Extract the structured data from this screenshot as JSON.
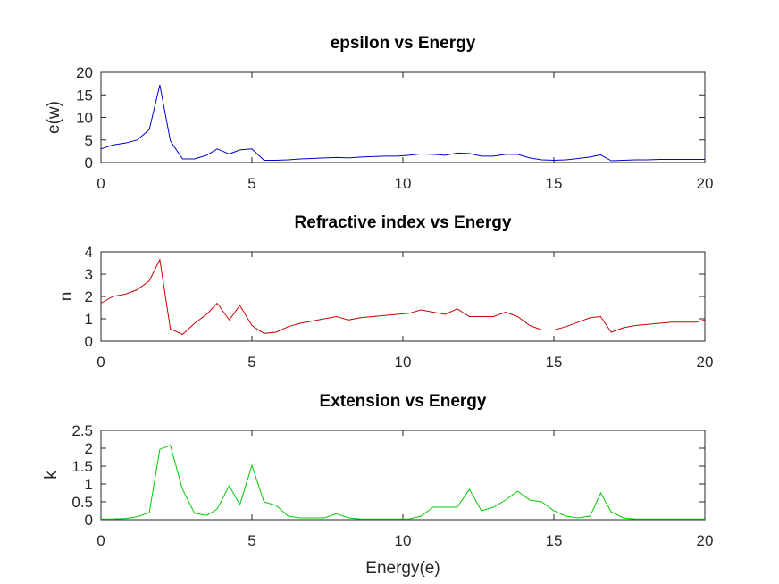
{
  "chart_data": [
    {
      "type": "line",
      "title": "epsilon vs Energy",
      "xlabel": "",
      "ylabel": "e(w)",
      "xlim": [
        0,
        20
      ],
      "ylim": [
        0,
        20
      ],
      "xticks": [
        "0",
        "5",
        "10",
        "15",
        "20"
      ],
      "yticks": [
        "0",
        "5",
        "10",
        "15",
        "20"
      ],
      "color": "#0000cc",
      "x": [
        0,
        0.4,
        0.8,
        1.2,
        1.6,
        1.95,
        2.3,
        2.7,
        3.1,
        3.5,
        3.85,
        4.25,
        4.6,
        5.0,
        5.4,
        5.8,
        6.2,
        6.6,
        7.0,
        7.4,
        7.8,
        8.2,
        8.6,
        9.0,
        9.4,
        9.8,
        10.2,
        10.6,
        11.0,
        11.4,
        11.8,
        12.2,
        12.6,
        13.0,
        13.4,
        13.8,
        14.2,
        14.6,
        15.0,
        15.4,
        15.8,
        16.2,
        16.55,
        16.9,
        17.3,
        17.7,
        18.1,
        18.5,
        18.9,
        19.3,
        19.7,
        20
      ],
      "y": [
        3.0,
        3.9,
        4.3,
        5.0,
        7.3,
        17.2,
        4.8,
        0.8,
        0.8,
        1.6,
        3.0,
        1.9,
        2.8,
        3.0,
        0.5,
        0.5,
        0.6,
        0.8,
        0.9,
        1.0,
        1.1,
        1.0,
        1.2,
        1.3,
        1.4,
        1.4,
        1.6,
        1.9,
        1.8,
        1.6,
        2.1,
        2.0,
        1.4,
        1.4,
        1.8,
        1.8,
        1.0,
        0.6,
        0.5,
        0.6,
        0.9,
        1.2,
        1.7,
        0.4,
        0.5,
        0.6,
        0.6,
        0.7,
        0.7,
        0.7,
        0.7,
        0.7
      ]
    },
    {
      "type": "line",
      "title": "Refractive index vs Energy",
      "xlabel": "",
      "ylabel": "n",
      "xlim": [
        0,
        20
      ],
      "ylim": [
        0,
        4
      ],
      "xticks": [
        "0",
        "5",
        "10",
        "15",
        "20"
      ],
      "yticks": [
        "0",
        "1",
        "2",
        "3",
        "4"
      ],
      "color": "#cc0000",
      "x": [
        0,
        0.4,
        0.8,
        1.2,
        1.6,
        1.95,
        2.3,
        2.7,
        3.1,
        3.5,
        3.85,
        4.25,
        4.6,
        5.0,
        5.4,
        5.8,
        6.2,
        6.6,
        7.0,
        7.4,
        7.8,
        8.2,
        8.6,
        9.0,
        9.4,
        9.8,
        10.2,
        10.6,
        11.0,
        11.4,
        11.8,
        12.2,
        12.6,
        13.0,
        13.4,
        13.8,
        14.2,
        14.6,
        15.0,
        15.4,
        15.8,
        16.2,
        16.55,
        16.9,
        17.3,
        17.7,
        18.1,
        18.5,
        18.9,
        19.3,
        19.7,
        20
      ],
      "y": [
        1.7,
        2.0,
        2.1,
        2.3,
        2.7,
        3.65,
        0.55,
        0.3,
        0.8,
        1.2,
        1.7,
        0.95,
        1.6,
        0.7,
        0.35,
        0.4,
        0.65,
        0.8,
        0.9,
        1.0,
        1.1,
        0.95,
        1.05,
        1.1,
        1.15,
        1.2,
        1.25,
        1.4,
        1.3,
        1.2,
        1.45,
        1.1,
        1.1,
        1.1,
        1.3,
        1.1,
        0.7,
        0.5,
        0.5,
        0.65,
        0.85,
        1.05,
        1.1,
        0.4,
        0.6,
        0.7,
        0.75,
        0.8,
        0.85,
        0.85,
        0.85,
        0.95
      ]
    },
    {
      "type": "line",
      "title": "Extension vs Energy",
      "xlabel": "Energy(e)",
      "ylabel": "k",
      "xlim": [
        0,
        20
      ],
      "ylim": [
        0,
        2.5
      ],
      "xticks": [
        "0",
        "5",
        "10",
        "15",
        "20"
      ],
      "yticks": [
        "0",
        "0.5",
        "1",
        "1.5",
        "2",
        "2.5"
      ],
      "color": "#00cc00",
      "x": [
        0,
        0.4,
        0.8,
        1.2,
        1.6,
        1.95,
        2.3,
        2.7,
        3.1,
        3.5,
        3.85,
        4.25,
        4.6,
        5.0,
        5.4,
        5.8,
        6.2,
        6.6,
        7.0,
        7.4,
        7.8,
        8.2,
        8.6,
        9.0,
        9.4,
        9.8,
        10.2,
        10.6,
        11.0,
        11.4,
        11.8,
        12.2,
        12.6,
        13.0,
        13.4,
        13.8,
        14.2,
        14.6,
        15.0,
        15.4,
        15.8,
        16.2,
        16.55,
        16.9,
        17.3,
        17.7,
        18.1,
        18.5,
        18.9,
        19.3,
        19.7,
        20
      ],
      "y": [
        0.02,
        0.02,
        0.03,
        0.08,
        0.2,
        1.97,
        2.08,
        0.85,
        0.18,
        0.12,
        0.3,
        0.95,
        0.42,
        1.52,
        0.5,
        0.4,
        0.1,
        0.05,
        0.05,
        0.05,
        0.17,
        0.05,
        0.02,
        0.02,
        0.02,
        0.02,
        0.02,
        0.1,
        0.35,
        0.35,
        0.35,
        0.85,
        0.25,
        0.35,
        0.55,
        0.8,
        0.55,
        0.5,
        0.25,
        0.1,
        0.05,
        0.1,
        0.75,
        0.22,
        0.05,
        0.02,
        0.02,
        0.02,
        0.02,
        0.02,
        0.02,
        0.02
      ]
    }
  ]
}
